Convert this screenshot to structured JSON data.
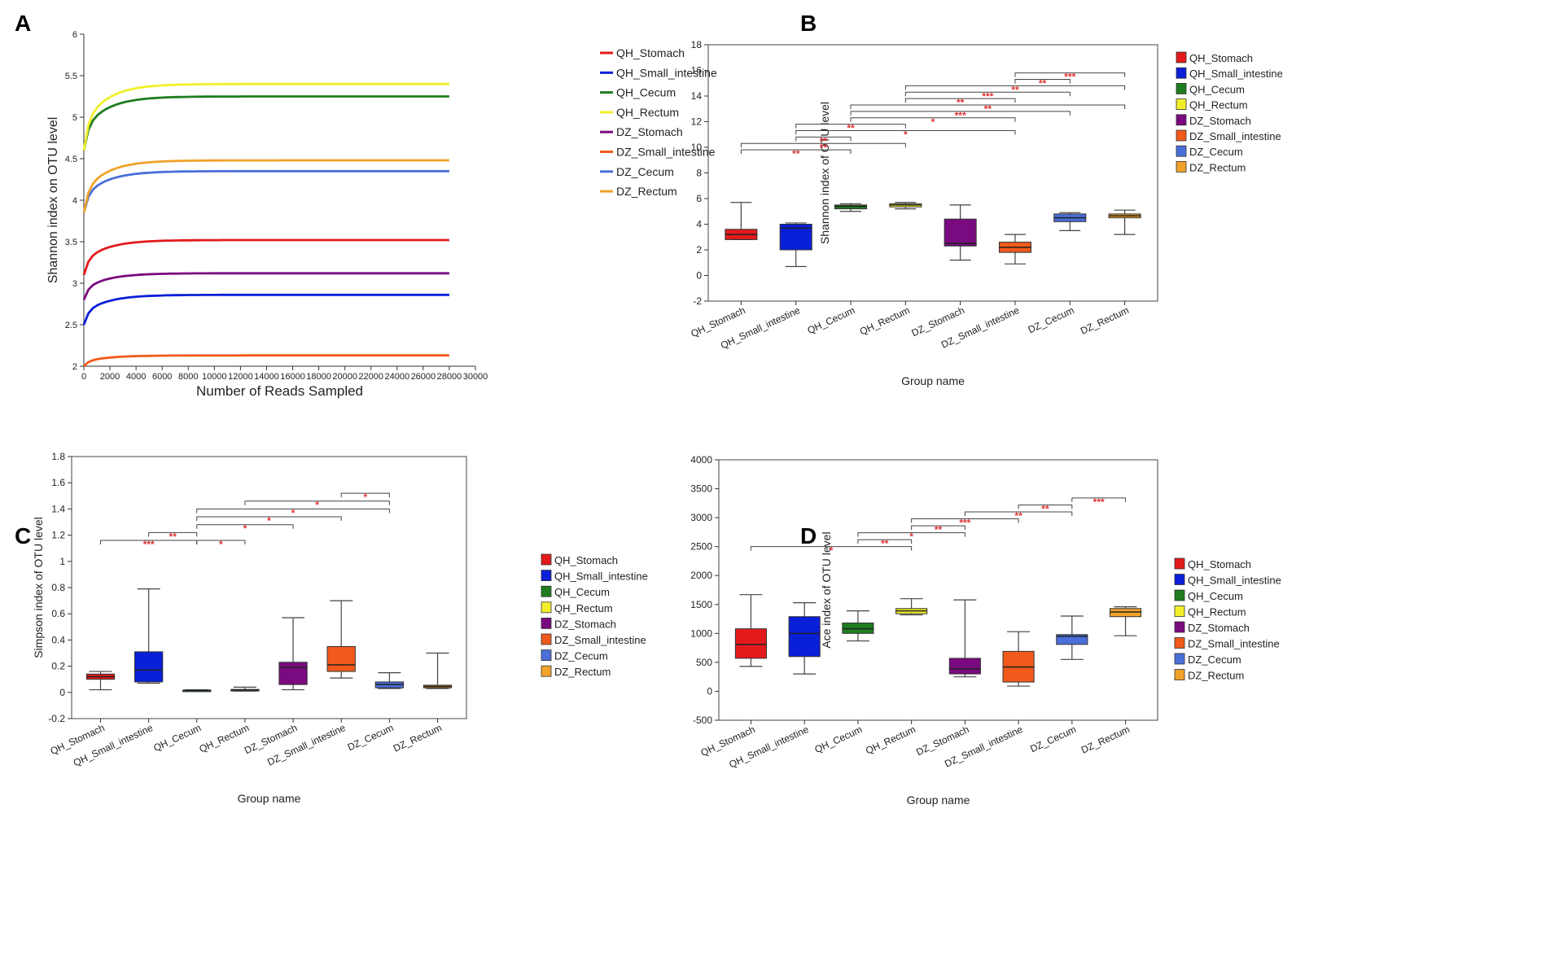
{
  "colors": {
    "QH_Stomach": "#e31a1c",
    "QH_Small_intestine": "#0a1fd8",
    "QH_Cecum": "#1f7d1f",
    "QH_Rectum": "#f2ef2a",
    "DZ_Stomach": "#7a0a7f",
    "DZ_Small_intestine": "#f05a1a",
    "DZ_Cecum": "#4a6fd8",
    "DZ_Rectum": "#f0a22a",
    "star": "#e03030"
  },
  "chart_data": [
    {
      "panel": "A",
      "type": "line",
      "xlabel": "Number of Reads Sampled",
      "ylabel": "Shannon index on OTU level",
      "xlim": [
        0,
        30000
      ],
      "ylim": [
        2,
        6
      ],
      "xticks": [
        0,
        2000,
        4000,
        6000,
        8000,
        10000,
        12000,
        14000,
        16000,
        18000,
        20000,
        22000,
        24000,
        26000,
        28000,
        30000
      ],
      "yticks": [
        2,
        2.5,
        3,
        3.5,
        4,
        4.5,
        5,
        5.5,
        6
      ],
      "series": [
        {
          "name": "QH_Stomach",
          "start": 3.1,
          "plateau": 3.52
        },
        {
          "name": "QH_Small_intestine",
          "start": 2.5,
          "plateau": 2.86
        },
        {
          "name": "QH_Cecum",
          "start": 4.6,
          "plateau": 5.25
        },
        {
          "name": "QH_Rectum",
          "start": 4.6,
          "plateau": 5.4
        },
        {
          "name": "DZ_Stomach",
          "start": 2.8,
          "plateau": 3.12
        },
        {
          "name": "DZ_Small_intestine",
          "start": 2.0,
          "plateau": 2.13
        },
        {
          "name": "DZ_Cecum",
          "start": 3.85,
          "plateau": 4.35
        },
        {
          "name": "DZ_Rectum",
          "start": 3.85,
          "plateau": 4.48
        }
      ]
    },
    {
      "panel": "B",
      "type": "box",
      "xlabel": "Group name",
      "ylabel": "Shannon index of OTU level",
      "ylim": [
        -2,
        18
      ],
      "yticks": [
        -2,
        0,
        2,
        4,
        6,
        8,
        10,
        12,
        14,
        16,
        18
      ],
      "categories": [
        "QH_Stomach",
        "QH_Small_intestine",
        "QH_Cecum",
        "QH_Rectum",
        "DZ_Stomach",
        "DZ_Small_intestine",
        "DZ_Cecum",
        "DZ_Rectum"
      ],
      "boxes": [
        {
          "min": 2.8,
          "q1": 2.8,
          "median": 3.2,
          "q3": 3.6,
          "max": 5.7
        },
        {
          "min": 0.7,
          "q1": 2.0,
          "median": 3.7,
          "q3": 4.0,
          "max": 4.1
        },
        {
          "min": 5.0,
          "q1": 5.2,
          "median": 5.4,
          "q3": 5.5,
          "max": 5.6
        },
        {
          "min": 5.2,
          "q1": 5.35,
          "median": 5.5,
          "q3": 5.6,
          "max": 5.7
        },
        {
          "min": 1.2,
          "q1": 2.3,
          "median": 2.5,
          "q3": 4.4,
          "max": 5.5
        },
        {
          "min": 0.9,
          "q1": 1.8,
          "median": 2.2,
          "q3": 2.6,
          "max": 3.2
        },
        {
          "min": 3.5,
          "q1": 4.2,
          "median": 4.5,
          "q3": 4.8,
          "max": 4.9
        },
        {
          "min": 3.2,
          "q1": 4.5,
          "median": 4.65,
          "q3": 4.8,
          "max": 5.1
        }
      ],
      "comparisons": [
        {
          "a": 0,
          "b": 2,
          "y": 9.8,
          "label": "**"
        },
        {
          "a": 0,
          "b": 3,
          "y": 10.3,
          "label": "**"
        },
        {
          "a": 1,
          "b": 2,
          "y": 10.8,
          "label": "**"
        },
        {
          "a": 1,
          "b": 5,
          "y": 11.3,
          "label": "*"
        },
        {
          "a": 1,
          "b": 3,
          "y": 11.8,
          "label": "**"
        },
        {
          "a": 2,
          "b": 5,
          "y": 12.3,
          "label": "*"
        },
        {
          "a": 2,
          "b": 6,
          "y": 12.8,
          "label": "***"
        },
        {
          "a": 2,
          "b": 7,
          "y": 13.3,
          "label": "**"
        },
        {
          "a": 3,
          "b": 5,
          "y": 13.8,
          "label": "**"
        },
        {
          "a": 3,
          "b": 6,
          "y": 14.3,
          "label": "***"
        },
        {
          "a": 3,
          "b": 7,
          "y": 14.8,
          "label": "**"
        },
        {
          "a": 5,
          "b": 6,
          "y": 15.3,
          "label": "**"
        },
        {
          "a": 5,
          "b": 7,
          "y": 15.8,
          "label": "***"
        }
      ]
    },
    {
      "panel": "C",
      "type": "box",
      "xlabel": "Group name",
      "ylabel": "Simpson index of OTU level",
      "ylim": [
        -0.2,
        1.8
      ],
      "yticks": [
        -0.2,
        0,
        0.2,
        0.4,
        0.6,
        0.8,
        1,
        1.2,
        1.4,
        1.6,
        1.8
      ],
      "categories": [
        "QH_Stomach",
        "QH_Small_intestine",
        "QH_Cecum",
        "QH_Rectum",
        "DZ_Stomach",
        "DZ_Small_intestine",
        "DZ_Cecum",
        "DZ_Rectum"
      ],
      "boxes": [
        {
          "min": 0.02,
          "q1": 0.1,
          "median": 0.12,
          "q3": 0.14,
          "max": 0.16
        },
        {
          "min": 0.07,
          "q1": 0.08,
          "median": 0.17,
          "q3": 0.31,
          "max": 0.79
        },
        {
          "min": 0.01,
          "q1": 0.012,
          "median": 0.015,
          "q3": 0.018,
          "max": 0.02
        },
        {
          "min": 0.01,
          "q1": 0.013,
          "median": 0.018,
          "q3": 0.023,
          "max": 0.04
        },
        {
          "min": 0.02,
          "q1": 0.06,
          "median": 0.19,
          "q3": 0.23,
          "max": 0.57
        },
        {
          "min": 0.11,
          "q1": 0.16,
          "median": 0.21,
          "q3": 0.35,
          "max": 0.7
        },
        {
          "min": 0.03,
          "q1": 0.035,
          "median": 0.06,
          "q3": 0.08,
          "max": 0.15
        },
        {
          "min": 0.03,
          "q1": 0.035,
          "median": 0.045,
          "q3": 0.055,
          "max": 0.3
        }
      ],
      "comparisons": [
        {
          "a": 0,
          "b": 2,
          "y": 1.16,
          "label": "***"
        },
        {
          "a": 1,
          "b": 2,
          "y": 1.22,
          "label": "**"
        },
        {
          "a": 2,
          "b": 3,
          "y": 1.16,
          "label": "*"
        },
        {
          "a": 2,
          "b": 4,
          "y": 1.28,
          "label": "*"
        },
        {
          "a": 2,
          "b": 5,
          "y": 1.34,
          "label": "*"
        },
        {
          "a": 2,
          "b": 6,
          "y": 1.4,
          "label": "*"
        },
        {
          "a": 3,
          "b": 6,
          "y": 1.46,
          "label": "*"
        },
        {
          "a": 5,
          "b": 6,
          "y": 1.52,
          "label": "*"
        }
      ]
    },
    {
      "panel": "D",
      "type": "box",
      "xlabel": "Group name",
      "ylabel": "Ace index of OTU level",
      "ylim": [
        -500,
        4000
      ],
      "yticks": [
        -500,
        0,
        500,
        1000,
        1500,
        2000,
        2500,
        3000,
        3500,
        4000
      ],
      "categories": [
        "QH_Stomach",
        "QH_Small_intestine",
        "QH_Cecum",
        "QH_Rectum",
        "DZ_Stomach",
        "DZ_Small_intestine",
        "DZ_Cecum",
        "DZ_Rectum"
      ],
      "boxes": [
        {
          "min": 430,
          "q1": 570,
          "median": 810,
          "q3": 1080,
          "max": 1670
        },
        {
          "min": 300,
          "q1": 600,
          "median": 1000,
          "q3": 1290,
          "max": 1530
        },
        {
          "min": 870,
          "q1": 1000,
          "median": 1080,
          "q3": 1180,
          "max": 1390
        },
        {
          "min": 1320,
          "q1": 1340,
          "median": 1390,
          "q3": 1430,
          "max": 1600
        },
        {
          "min": 250,
          "q1": 300,
          "median": 390,
          "q3": 570,
          "max": 1580
        },
        {
          "min": 90,
          "q1": 160,
          "median": 420,
          "q3": 690,
          "max": 1030
        },
        {
          "min": 550,
          "q1": 810,
          "median": 950,
          "q3": 980,
          "max": 1300
        },
        {
          "min": 960,
          "q1": 1290,
          "median": 1370,
          "q3": 1430,
          "max": 1460
        }
      ],
      "comparisons": [
        {
          "a": 0,
          "b": 3,
          "y": 2500,
          "label": "*"
        },
        {
          "a": 2,
          "b": 3,
          "y": 2620,
          "label": "**"
        },
        {
          "a": 2,
          "b": 4,
          "y": 2740,
          "label": "*"
        },
        {
          "a": 3,
          "b": 4,
          "y": 2860,
          "label": "**"
        },
        {
          "a": 3,
          "b": 5,
          "y": 2980,
          "label": "***"
        },
        {
          "a": 4,
          "b": 6,
          "y": 3100,
          "label": "**"
        },
        {
          "a": 5,
          "b": 6,
          "y": 3220,
          "label": "**"
        },
        {
          "a": 6,
          "b": 7,
          "y": 3340,
          "label": "***"
        }
      ]
    }
  ]
}
